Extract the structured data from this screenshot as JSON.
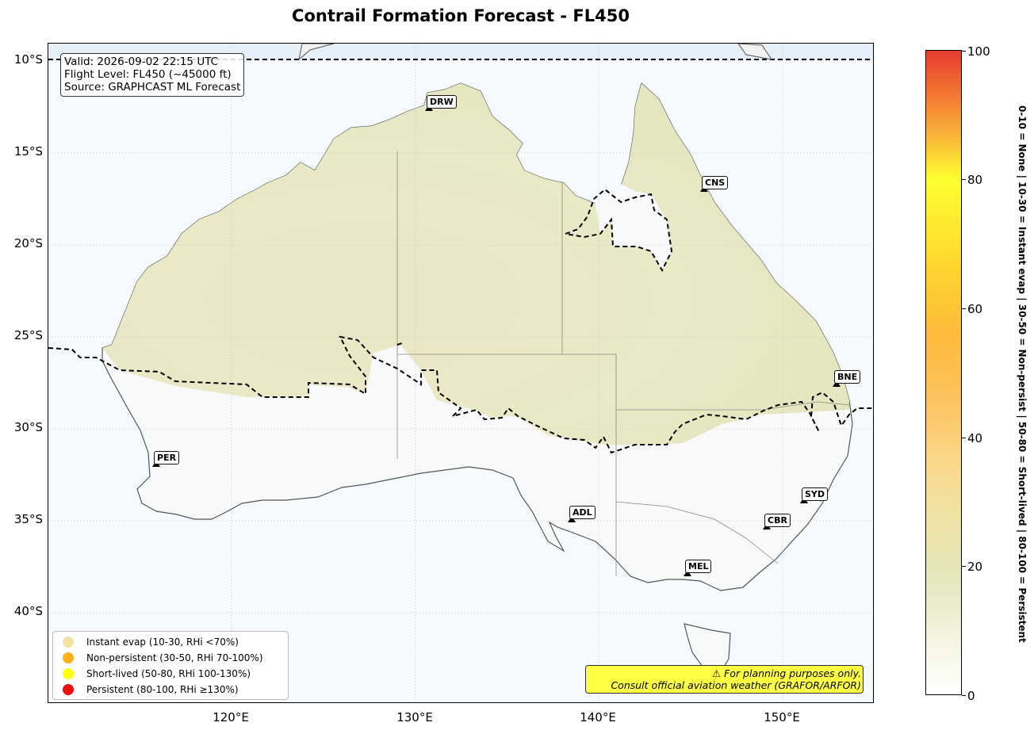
{
  "title": "Contrail Formation Forecast - FL450",
  "info": {
    "valid": "Valid: 2026-09-02 22:15 UTC",
    "flight_level": "Flight Level: FL450 (~45000 ft)",
    "source": "Source: GRAPHCAST ML Forecast"
  },
  "axes": {
    "lat_labels": [
      "10°S",
      "15°S",
      "20°S",
      "25°S",
      "30°S",
      "35°S",
      "40°S"
    ],
    "lon_labels": [
      "120°E",
      "130°E",
      "140°E",
      "150°E"
    ]
  },
  "cities": [
    {
      "code": "DRW"
    },
    {
      "code": "CNS"
    },
    {
      "code": "BNE"
    },
    {
      "code": "PER"
    },
    {
      "code": "SYD"
    },
    {
      "code": "ADL"
    },
    {
      "code": "CBR"
    },
    {
      "code": "MEL"
    }
  ],
  "legend": [
    {
      "label": "Instant evap (10-30, RHi <70%)",
      "color": "#f3e3a3"
    },
    {
      "label": "Non-persistent (30-50, RHi 70-100%)",
      "color": "#fdb318"
    },
    {
      "label": "Short-lived (50-80, RHi 100-130%)",
      "color": "#ffff10"
    },
    {
      "label": "Persistent (80-100, RHi ≥130%)",
      "color": "#e81010"
    }
  ],
  "disclaimer": {
    "line1": "⚠ For planning purposes only.",
    "line2": "Consult official aviation weather (GRAFOR/ARFOR)"
  },
  "colorbar": {
    "ticks": [
      "0",
      "20",
      "40",
      "60",
      "80",
      "100"
    ],
    "title": "0-10 = None  |  10-30 = Instant evap  |  30-50 = Non-persist  |  50-80 = Short-lived  |  80-100 = Persistent"
  },
  "colors": {
    "ocean": "#f6fafe",
    "land_high": "#e8e8c4",
    "land_low": "#f8f8f8",
    "contour": "#000000"
  }
}
